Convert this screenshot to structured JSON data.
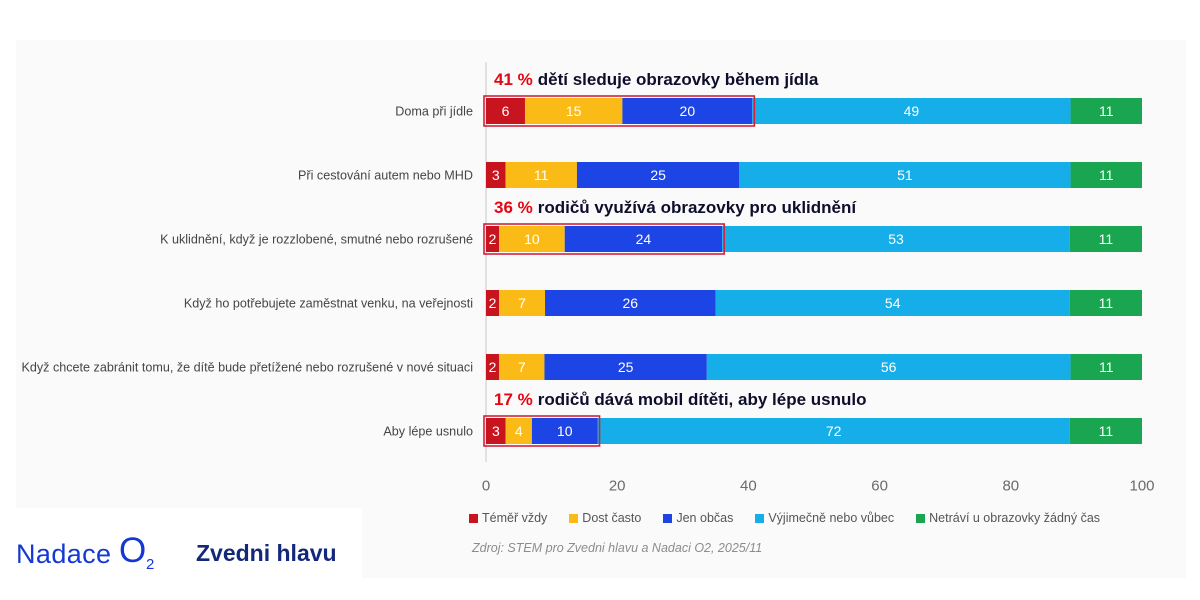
{
  "chart_data": {
    "type": "bar",
    "stacked": true,
    "horizontal": true,
    "categories": [
      "Doma při jídle",
      "Při cestování autem nebo MHD",
      "K uklidnění, když je rozzlobené, smutné nebo rozrušené",
      "Když ho potřebujete zaměstnat venku, na veřejnosti",
      "Když chcete zabránit tomu, že dítě bude přetížené nebo rozrušené v nové situaci",
      "Aby lépe usnulo"
    ],
    "series": [
      {
        "name": "Téměř vždy",
        "color": "#c8141e",
        "values": [
          6,
          3,
          2,
          2,
          2,
          3
        ]
      },
      {
        "name": "Dost často",
        "color": "#fbbb16",
        "values": [
          15,
          11,
          10,
          7,
          7,
          4
        ]
      },
      {
        "name": "Jen občas",
        "color": "#1d44e4",
        "values": [
          20,
          25,
          24,
          26,
          25,
          10
        ]
      },
      {
        "name": "Výjimečně nebo vůbec",
        "color": "#15aee9",
        "values": [
          49,
          51,
          53,
          54,
          56,
          72
        ]
      },
      {
        "name": "Netráví u obrazovky žádný čas",
        "color": "#1aa650",
        "values": [
          11,
          11,
          11,
          11,
          11,
          11
        ]
      }
    ],
    "xlim": [
      0,
      100
    ],
    "xticks": [
      0,
      20,
      40,
      60,
      80,
      100
    ],
    "annotations": [
      {
        "row": 0,
        "highlighted_series": [
          0,
          1,
          2
        ],
        "highlight": "41 %",
        "text": "dětí sleduje obrazovky během jídla"
      },
      {
        "row": 2,
        "highlighted_series": [
          0,
          1,
          2
        ],
        "highlight": "36 %",
        "text": "rodičů využívá obrazovky pro uklidnění"
      },
      {
        "row": 5,
        "highlighted_series": [
          0,
          1,
          2
        ],
        "highlight": "17 %",
        "text": "rodičů dává mobil dítěti, aby lépe usnulo"
      }
    ],
    "legend_position": "bottom",
    "source": "Zdroj: STEM pro Zvedni hlavu a Nadaci O2, 2025/11"
  },
  "branding": {
    "foundation_name": "Nadace",
    "o2_letter": "O",
    "o2_subscript": "2",
    "campaign_name": "Zvedni hlavu"
  },
  "colors": {
    "annotation_highlight": "#e30613",
    "annotation_text": "#0e0e2c",
    "highlight_box": "#d4213a",
    "brand_blue": "#1438d4",
    "brand_navy": "#13287a"
  }
}
